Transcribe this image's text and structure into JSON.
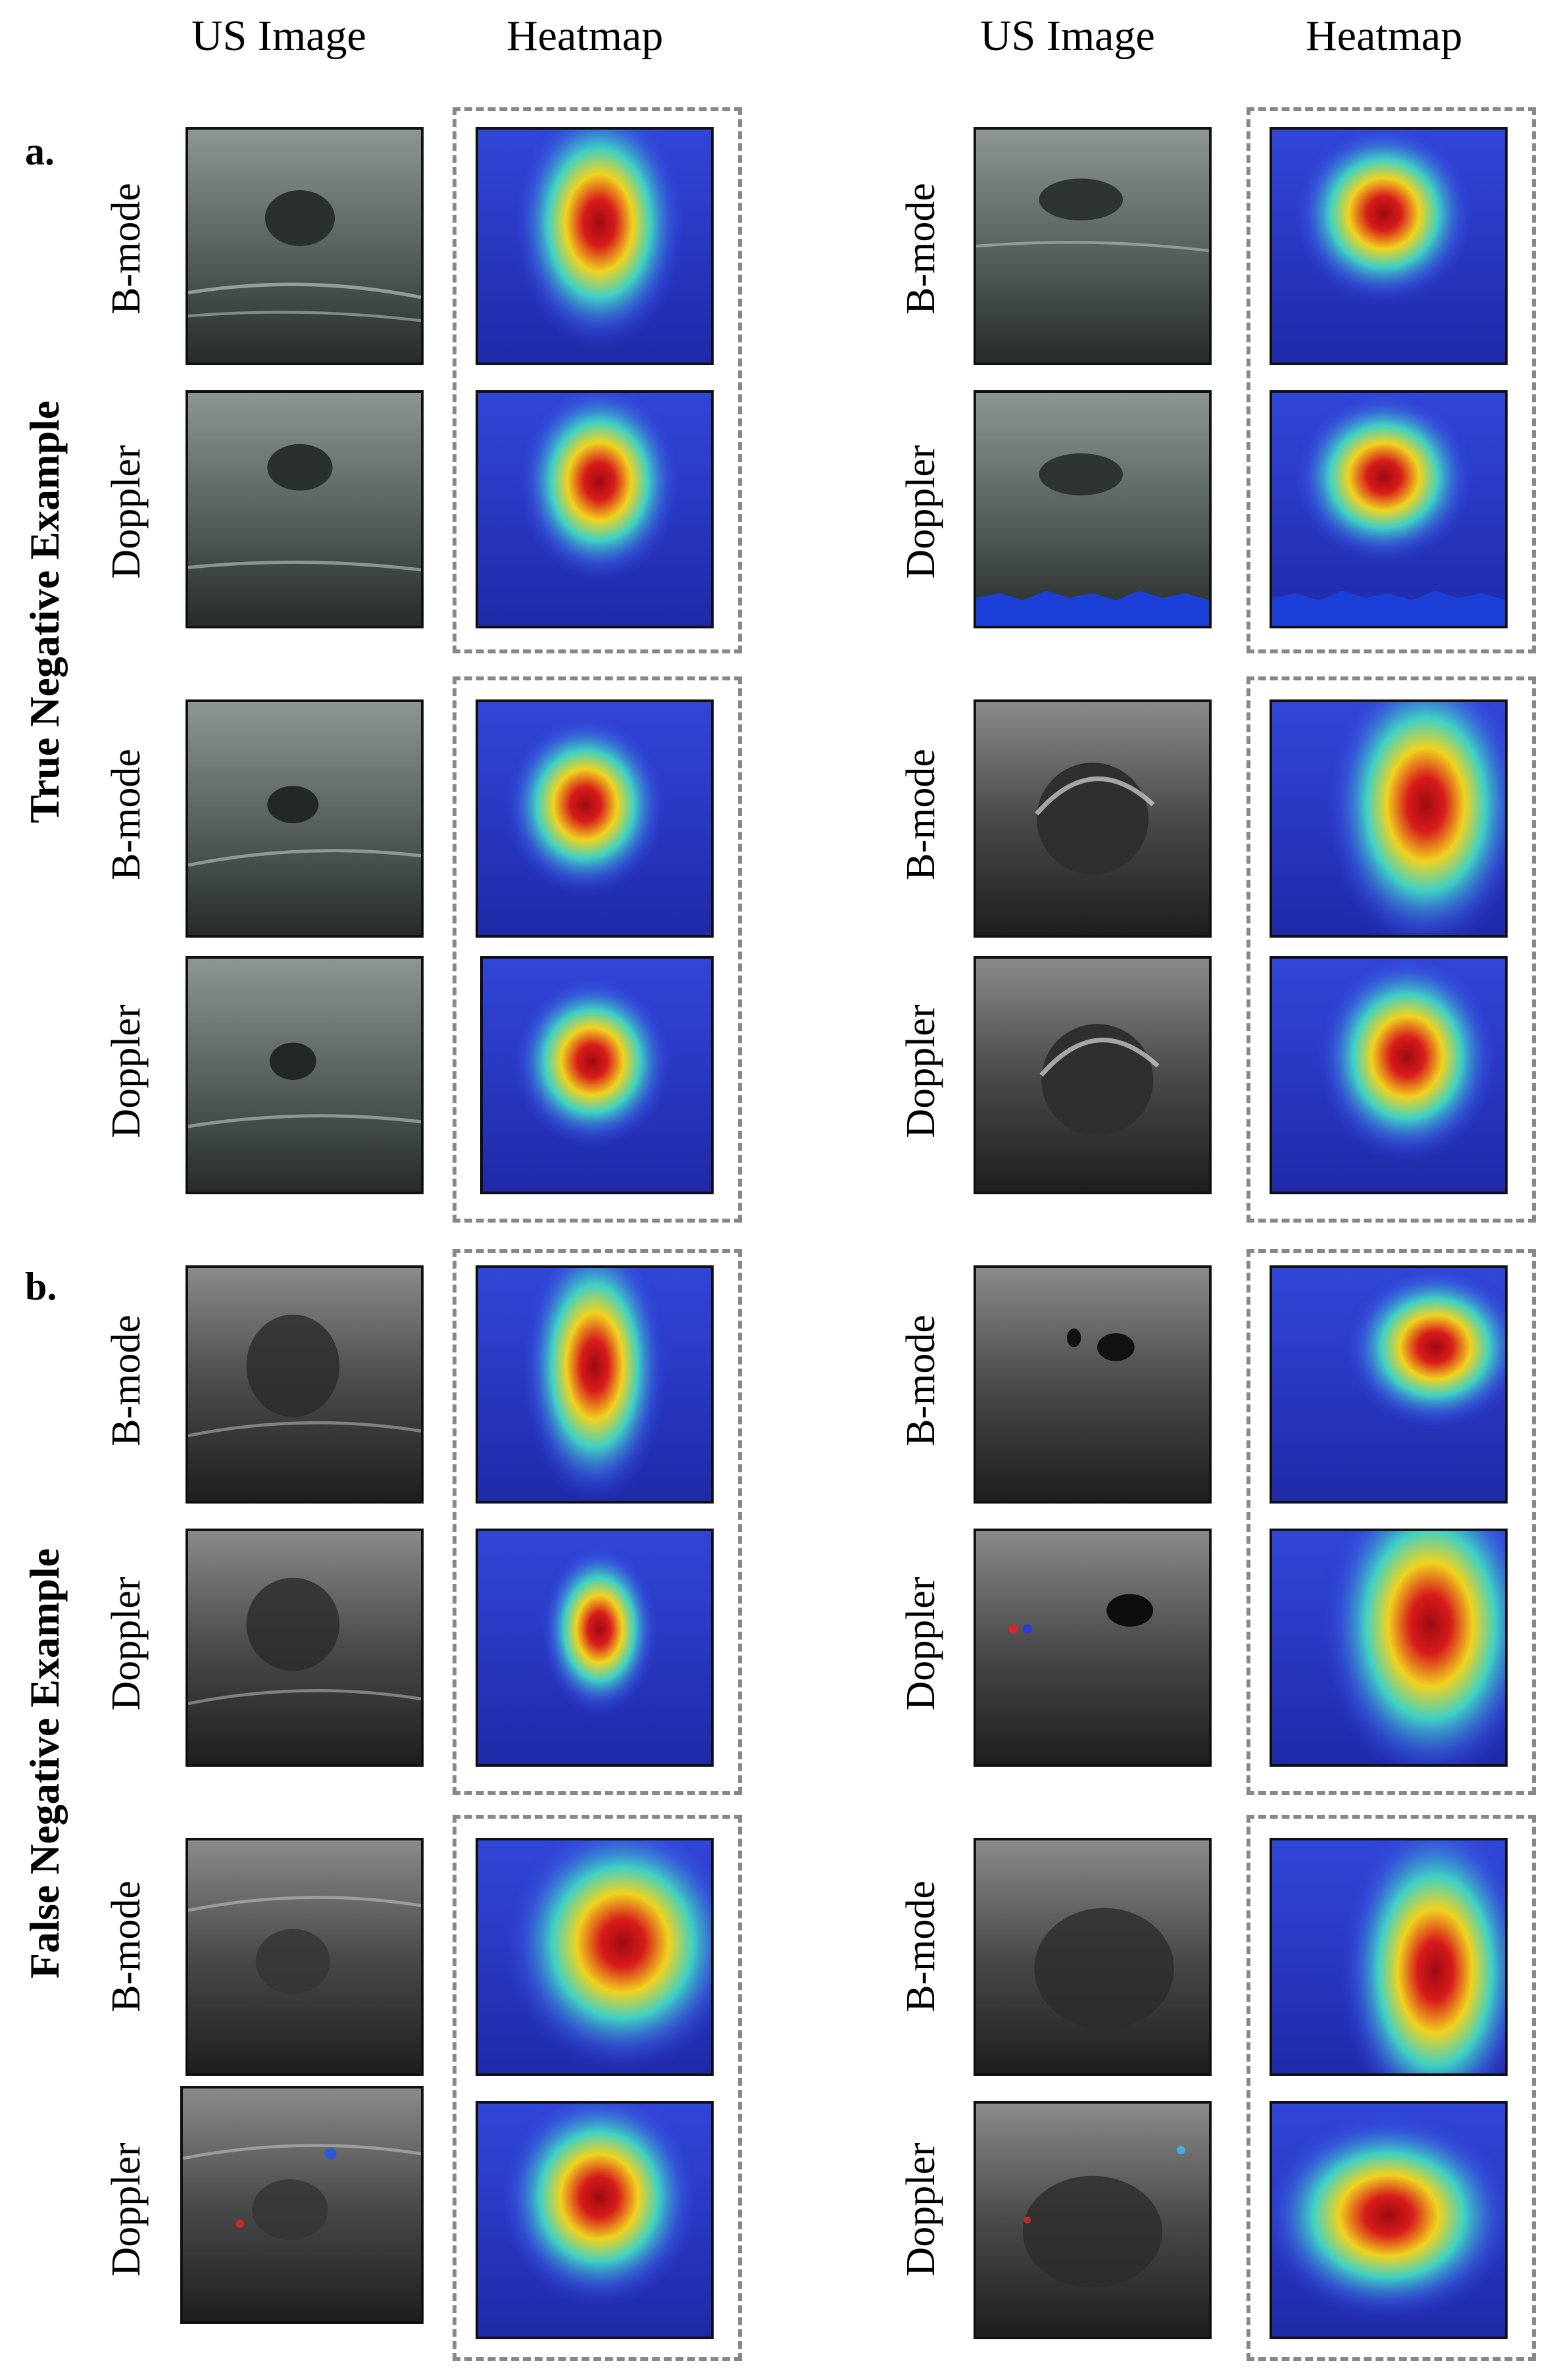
{
  "headers": {
    "us_image": "US Image",
    "heatmap": "Heatmap"
  },
  "sections": {
    "a": {
      "letter": "a.",
      "label": "True Negative  Example"
    },
    "b": {
      "letter": "b.",
      "label": "False Negative  Example"
    }
  },
  "modes": {
    "bmode": "B-mode",
    "doppler": "Doppler"
  },
  "colors": {
    "frame_dash": "#888888",
    "heat_low": "#2b2fd6",
    "heat_mid": "#3fd1c4",
    "heat_high": "#f0d21e",
    "heat_peak": "#c0101a"
  }
}
